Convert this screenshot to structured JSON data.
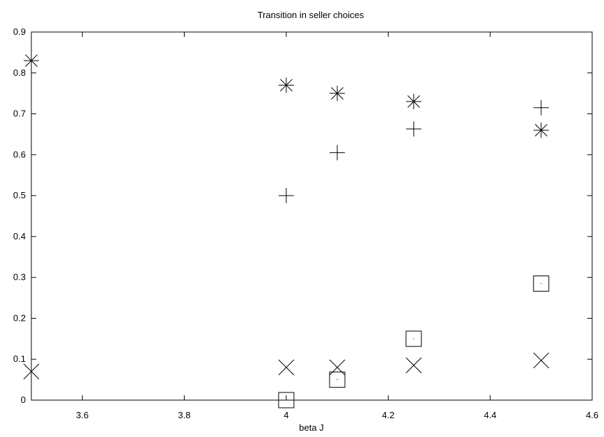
{
  "chart_data": {
    "type": "scatter",
    "title": "Transition in seller choices",
    "xlabel": "beta J",
    "ylabel": "",
    "xlim": [
      3.5,
      4.6
    ],
    "ylim": [
      0,
      0.9
    ],
    "x_ticks": [
      "3.6",
      "3.8",
      "4",
      "4.2",
      "4.4",
      "4.6"
    ],
    "y_ticks": [
      "0",
      "0.1",
      "0.2",
      "0.3",
      "0.4",
      "0.5",
      "0.6",
      "0.7",
      "0.8",
      "0.9"
    ],
    "grid": false,
    "legend": "none",
    "series": [
      {
        "marker": "plus",
        "points": [
          [
            4.0,
            0.5
          ],
          [
            4.1,
            0.605
          ],
          [
            4.25,
            0.663
          ],
          [
            4.5,
            0.715
          ]
        ]
      },
      {
        "marker": "cross",
        "points": [
          [
            3.5,
            0.07
          ],
          [
            4.0,
            0.08
          ],
          [
            4.1,
            0.08
          ],
          [
            4.25,
            0.085
          ],
          [
            4.5,
            0.097
          ]
        ]
      },
      {
        "marker": "star",
        "points": [
          [
            3.5,
            0.83
          ],
          [
            4.0,
            0.77
          ],
          [
            4.1,
            0.75
          ],
          [
            4.25,
            0.73
          ],
          [
            4.5,
            0.66
          ]
        ]
      },
      {
        "marker": "square",
        "points": [
          [
            4.0,
            0.0
          ],
          [
            4.1,
            0.05
          ],
          [
            4.25,
            0.15
          ],
          [
            4.5,
            0.285
          ]
        ]
      }
    ]
  }
}
